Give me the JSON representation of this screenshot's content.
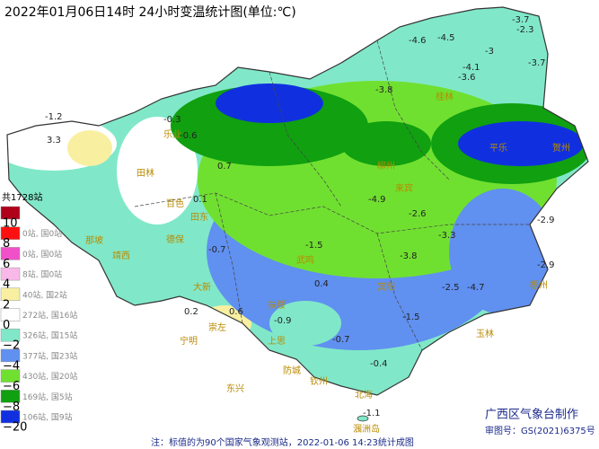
{
  "header": {
    "title": "2022年01月06日14时 24小时变温统计图(单位:℃)"
  },
  "legend": {
    "total": "共1728站",
    "levels": [
      {
        "color": "#b0001a",
        "count": null,
        "threshold": "10"
      },
      {
        "color": "#ff1010",
        "count": "0站, 国0站",
        "threshold": "8"
      },
      {
        "color": "#f050c8",
        "count": "0站, 国0站",
        "threshold": "6"
      },
      {
        "color": "#f8b8e8",
        "count": "8站, 国0站",
        "threshold": "4"
      },
      {
        "color": "#f8f0a0",
        "count": "40站, 国2站",
        "threshold": "2"
      },
      {
        "color": "#ffffff",
        "count": "272站, 国16站",
        "threshold": "0"
      },
      {
        "color": "#80e8c8",
        "count": "326站, 国15站",
        "threshold": "−2"
      },
      {
        "color": "#6090f0",
        "count": "377站, 国23站",
        "threshold": "−4"
      },
      {
        "color": "#70e030",
        "count": "430站, 国20站",
        "threshold": "−6"
      },
      {
        "color": "#10a010",
        "count": "169站, 国5站",
        "threshold": "−8"
      },
      {
        "color": "#1030e0",
        "count": "106站, 国9站",
        "threshold": "−20"
      }
    ]
  },
  "station_values": [
    -3.7,
    -2.3,
    -4.5,
    -4.6,
    -3,
    -3.7,
    -4.1,
    -3.6,
    -3.8,
    -1.2,
    3.3,
    -0.3,
    -0.6,
    0.7,
    -4.9,
    -2.6,
    -3.3,
    -2.9,
    -1.5,
    -3.8,
    -2.5,
    -4.7,
    -2.9,
    0.2,
    0.6,
    -0.9,
    -1.5,
    -0.7,
    -0.4,
    -1.1,
    0.1,
    -0.7,
    0.4
  ],
  "place_names": [
    "乐业",
    "田林",
    "百色",
    "田东",
    "德保",
    "靖西",
    "那坡",
    "大新",
    "崇左",
    "扶绥",
    "宁明",
    "上思",
    "东兴",
    "防城",
    "钦州",
    "北海",
    "涠洲岛",
    "武鸣",
    "宾阳",
    "来宾",
    "柳州",
    "桂林",
    "平乐",
    "贺州",
    "梧州",
    "玉林"
  ],
  "footer": {
    "maker": "广西区气象台制作",
    "approval": "审图号：GS(2021)6375号",
    "note": "注：标值的为90个国家气象观测站，2022-01-06 14:23统计成图"
  }
}
